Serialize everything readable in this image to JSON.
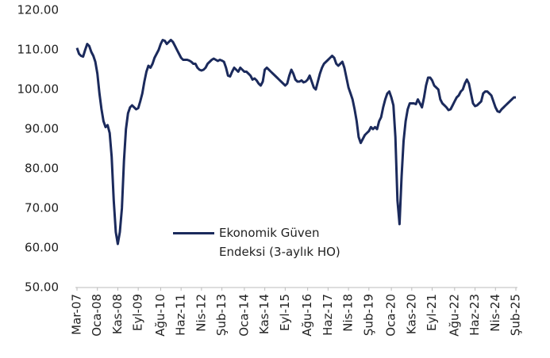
{
  "chart_data": {
    "type": "line",
    "categories": [
      "Mar-07",
      null,
      null,
      null,
      null,
      null,
      null,
      null,
      null,
      null,
      "Oca-08",
      null,
      null,
      null,
      null,
      null,
      null,
      null,
      null,
      null,
      "Kas-08",
      null,
      null,
      null,
      null,
      null,
      null,
      null,
      null,
      null,
      "Eyl-09",
      null,
      null,
      null,
      null,
      null,
      null,
      null,
      null,
      null,
      null,
      "Ağu-10",
      null,
      null,
      null,
      null,
      null,
      null,
      null,
      null,
      null,
      "Haz-11",
      null,
      null,
      null,
      null,
      null,
      null,
      null,
      null,
      null,
      "Nis-12",
      null,
      null,
      null,
      null,
      null,
      null,
      null,
      null,
      null,
      "Şub-13",
      null,
      null,
      null,
      null,
      null,
      null,
      null,
      null,
      null,
      null,
      "Oca-14",
      null,
      null,
      null,
      null,
      null,
      null,
      null,
      null,
      null,
      "Kas-14",
      null,
      null,
      null,
      null,
      null,
      null,
      null,
      null,
      null,
      "Eyl-15",
      null,
      null,
      null,
      null,
      null,
      null,
      null,
      null,
      null,
      null,
      "Ağu-16",
      null,
      null,
      null,
      null,
      null,
      null,
      null,
      null,
      null,
      "Haz-17",
      null,
      null,
      null,
      null,
      null,
      null,
      null,
      null,
      null,
      "Nis-18",
      null,
      null,
      null,
      null,
      null,
      null,
      null,
      null,
      null,
      "Şub-19",
      null,
      null,
      null,
      null,
      null,
      null,
      null,
      null,
      null,
      null,
      "Oca-20",
      null,
      null,
      null,
      null,
      null,
      null,
      null,
      null,
      null,
      "Kas-20",
      null,
      null,
      null,
      null,
      null,
      null,
      null,
      null,
      null,
      "Eyl-21",
      null,
      null,
      null,
      null,
      null,
      null,
      null,
      null,
      null,
      null,
      "Ağu-22",
      null,
      null,
      null,
      null,
      null,
      null,
      null,
      null,
      null,
      "Haz-23",
      null,
      null,
      null,
      null,
      null,
      null,
      null,
      null,
      null,
      "Nis-24",
      null,
      null,
      null,
      null,
      null,
      null,
      null,
      null,
      null,
      "Şub-25"
    ],
    "series": [
      {
        "name": "Ekonomik Güven Endeksi (3-aylık HO)",
        "color": "#1b2a5c",
        "values": [
          110.5,
          109,
          108.5,
          108.3,
          110,
          111.5,
          111,
          109.5,
          108.5,
          107,
          104,
          99,
          95,
          92,
          90.5,
          91,
          89,
          83,
          72,
          64,
          61,
          64,
          70,
          82,
          90,
          94,
          95.5,
          96,
          95.5,
          95,
          95.3,
          97,
          99,
          102,
          104.5,
          106,
          105.5,
          106.5,
          108,
          109,
          110,
          111.5,
          112.5,
          112.3,
          111.5,
          112,
          112.5,
          112,
          111,
          110,
          109,
          108,
          107.5,
          107.5,
          107.5,
          107.3,
          107,
          106.5,
          106.5,
          105.5,
          105,
          104.8,
          105,
          105.5,
          106.5,
          107,
          107.5,
          107.8,
          107.5,
          107.2,
          107.5,
          107.3,
          107,
          105.5,
          103.5,
          103.3,
          104.5,
          105.5,
          105,
          104.5,
          105.5,
          105,
          104.5,
          104.5,
          104,
          103.5,
          102.5,
          102.8,
          102.3,
          101.5,
          101,
          102,
          105,
          105.5,
          105,
          104.5,
          104,
          103.5,
          103,
          102.5,
          102,
          101.5,
          101,
          101.5,
          103.5,
          105,
          104,
          102.5,
          102,
          102,
          102.3,
          101.8,
          102,
          102.5,
          103.5,
          102,
          100.5,
          100,
          102,
          104,
          105.5,
          106.5,
          107,
          107.5,
          108,
          108.5,
          108,
          106.5,
          106,
          106.5,
          107,
          105.5,
          103,
          100.5,
          99,
          97.5,
          95,
          92,
          88,
          86.5,
          87.5,
          88.5,
          89,
          89.5,
          90.5,
          90,
          90.5,
          90,
          92,
          93,
          95.5,
          97.5,
          99,
          99.5,
          98,
          96,
          88,
          72,
          66,
          78,
          87,
          92,
          95,
          96.5,
          96.5,
          96.5,
          96.3,
          97.5,
          96.5,
          95.5,
          98,
          101,
          103,
          103,
          102.3,
          101,
          100.5,
          100,
          97.5,
          96.5,
          96,
          95.5,
          94.8,
          95,
          96,
          97,
          98,
          98.5,
          99.5,
          100,
          101.5,
          102.5,
          101.5,
          99,
          96.5,
          95.8,
          96,
          96.5,
          97,
          99,
          99.5,
          99.5,
          99,
          98.5,
          97,
          95.5,
          94.5,
          94.3,
          95,
          95.5,
          96,
          96.5,
          97,
          97.5,
          98,
          98
        ]
      }
    ],
    "ylim": [
      50,
      120
    ],
    "yticks": [
      {
        "value": 50,
        "label": "50.00"
      },
      {
        "value": 60,
        "label": "60.00"
      },
      {
        "value": 70,
        "label": "70.00"
      },
      {
        "value": 80,
        "label": "80.00"
      },
      {
        "value": 90,
        "label": "90.00"
      },
      {
        "value": 100,
        "label": "100.00"
      },
      {
        "value": 110,
        "label": "110.00"
      },
      {
        "value": 120,
        "label": "120.00"
      }
    ]
  }
}
